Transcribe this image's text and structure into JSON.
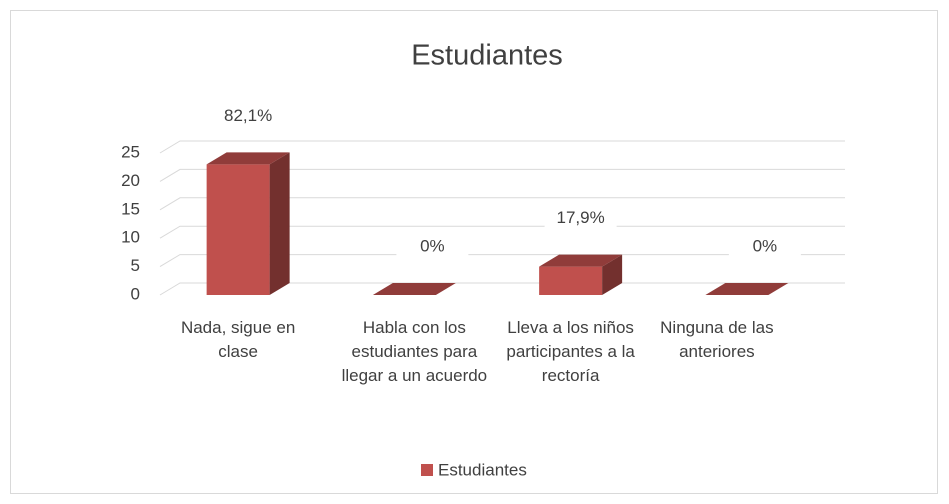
{
  "chart_data": {
    "type": "bar3d",
    "title": "Estudiantes",
    "categories": [
      "Nada, sigue en clase",
      "Habla con los estudiantes para llegar a un acuerdo",
      "Lleva a los niños participantes a la rectoría",
      "Ninguna de las anteriores"
    ],
    "series": [
      {
        "name": "Estudiantes",
        "color": "#c0504d",
        "values": [
          23,
          0,
          5,
          0
        ],
        "value_labels": [
          "82,1%",
          "0%",
          "17,9%",
          "0%"
        ]
      }
    ],
    "ylim": [
      0,
      25
    ],
    "yticks": [
      0,
      5,
      10,
      15,
      20,
      25
    ],
    "grid": true,
    "legend": "bottom"
  }
}
